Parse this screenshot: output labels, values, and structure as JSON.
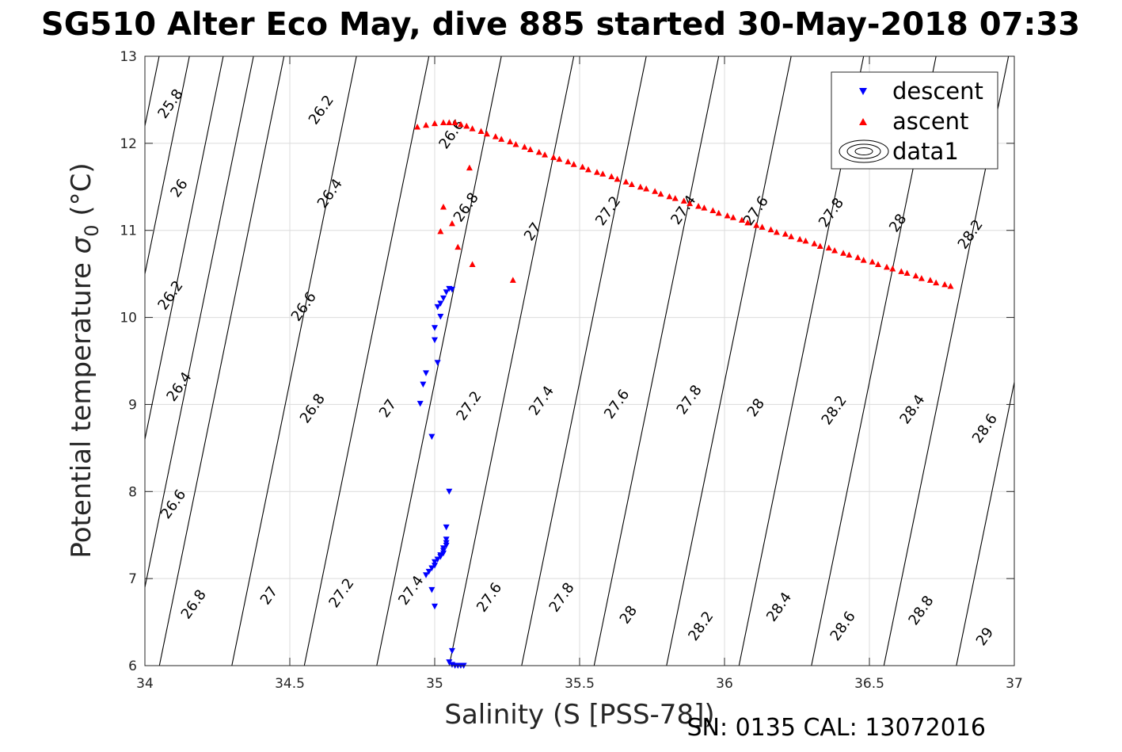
{
  "chart_data": {
    "type": "scatter",
    "title": "SG510 Alter Eco May, dive 885 started 30-May-2018 07:33",
    "xlabel": "Salinity (S [PSS-78])",
    "ylabel_main": "Potential temperature ",
    "ylabel_symbol": "σ",
    "ylabel_sub": "0",
    "ylabel_unit": " (°C)",
    "footer": "SN: 0135  CAL: 13072016",
    "xlim": [
      34,
      37
    ],
    "ylim": [
      6,
      13
    ],
    "xticks": [
      34,
      34.5,
      35,
      35.5,
      36,
      36.5,
      37
    ],
    "xtick_labels": [
      "34",
      "34.5",
      "35",
      "35.5",
      "36",
      "36.5",
      "37"
    ],
    "yticks": [
      6,
      7,
      8,
      9,
      10,
      11,
      12,
      13
    ],
    "ytick_labels": [
      "6",
      "7",
      "8",
      "9",
      "10",
      "11",
      "12",
      "13"
    ],
    "grid": true,
    "legend_position": "top-right",
    "series": [
      {
        "name": "descent",
        "marker": "triangle-down",
        "color": "#0000ff",
        "points": [
          [
            35.05,
            10.33
          ],
          [
            35.06,
            10.32
          ],
          [
            35.04,
            10.29
          ],
          [
            35.03,
            10.22
          ],
          [
            35.02,
            10.16
          ],
          [
            35.01,
            10.12
          ],
          [
            35.02,
            10.01
          ],
          [
            35.0,
            9.88
          ],
          [
            35.0,
            9.74
          ],
          [
            35.01,
            9.48
          ],
          [
            34.97,
            9.36
          ],
          [
            34.96,
            9.23
          ],
          [
            34.95,
            9.01
          ],
          [
            34.99,
            8.63
          ],
          [
            35.05,
            8.0
          ],
          [
            35.04,
            7.59
          ],
          [
            35.04,
            7.45
          ],
          [
            35.04,
            7.41
          ],
          [
            35.04,
            7.38
          ],
          [
            35.03,
            7.35
          ],
          [
            35.03,
            7.32
          ],
          [
            35.03,
            7.29
          ],
          [
            35.02,
            7.27
          ],
          [
            35.02,
            7.25
          ],
          [
            35.01,
            7.22
          ],
          [
            35.0,
            7.19
          ],
          [
            35.0,
            7.15
          ],
          [
            34.99,
            7.12
          ],
          [
            34.98,
            7.08
          ],
          [
            34.97,
            7.04
          ],
          [
            34.99,
            6.87
          ],
          [
            35.0,
            6.68
          ],
          [
            35.06,
            6.17
          ],
          [
            35.05,
            6.04
          ],
          [
            35.06,
            6.01
          ],
          [
            35.07,
            6.0
          ],
          [
            35.08,
            6.0
          ],
          [
            35.09,
            6.0
          ],
          [
            35.1,
            6.0
          ]
        ]
      },
      {
        "name": "ascent",
        "marker": "triangle-up",
        "color": "#ff0000",
        "points": [
          [
            34.94,
            12.19
          ],
          [
            34.97,
            12.21
          ],
          [
            35.0,
            12.23
          ],
          [
            35.03,
            12.24
          ],
          [
            35.05,
            12.24
          ],
          [
            35.07,
            12.24
          ],
          [
            35.09,
            12.22
          ],
          [
            35.11,
            12.2
          ],
          [
            35.13,
            12.17
          ],
          [
            35.16,
            12.14
          ],
          [
            35.18,
            12.11
          ],
          [
            35.21,
            12.08
          ],
          [
            35.23,
            12.05
          ],
          [
            35.26,
            12.02
          ],
          [
            35.28,
            11.99
          ],
          [
            35.31,
            11.96
          ],
          [
            35.33,
            11.93
          ],
          [
            35.36,
            11.9
          ],
          [
            35.38,
            11.87
          ],
          [
            35.41,
            11.84
          ],
          [
            35.43,
            11.82
          ],
          [
            35.46,
            11.79
          ],
          [
            35.48,
            11.76
          ],
          [
            35.51,
            11.73
          ],
          [
            35.53,
            11.7
          ],
          [
            35.56,
            11.67
          ],
          [
            35.58,
            11.65
          ],
          [
            35.61,
            11.62
          ],
          [
            35.63,
            11.59
          ],
          [
            35.66,
            11.56
          ],
          [
            35.68,
            11.53
          ],
          [
            35.71,
            11.5
          ],
          [
            35.73,
            11.48
          ],
          [
            35.76,
            11.45
          ],
          [
            35.78,
            11.42
          ],
          [
            35.81,
            11.39
          ],
          [
            35.83,
            11.37
          ],
          [
            35.86,
            11.34
          ],
          [
            35.88,
            11.31
          ],
          [
            35.91,
            11.28
          ],
          [
            35.93,
            11.26
          ],
          [
            35.96,
            11.23
          ],
          [
            35.98,
            11.2
          ],
          [
            36.01,
            11.17
          ],
          [
            36.03,
            11.15
          ],
          [
            36.06,
            11.12
          ],
          [
            36.08,
            11.09
          ],
          [
            36.11,
            11.06
          ],
          [
            36.13,
            11.04
          ],
          [
            36.16,
            11.01
          ],
          [
            36.18,
            10.98
          ],
          [
            36.21,
            10.96
          ],
          [
            36.23,
            10.93
          ],
          [
            36.26,
            10.9
          ],
          [
            36.28,
            10.88
          ],
          [
            36.31,
            10.85
          ],
          [
            36.33,
            10.82
          ],
          [
            36.36,
            10.8
          ],
          [
            36.38,
            10.77
          ],
          [
            36.41,
            10.74
          ],
          [
            36.43,
            10.72
          ],
          [
            36.46,
            10.69
          ],
          [
            36.48,
            10.66
          ],
          [
            36.51,
            10.64
          ],
          [
            36.53,
            10.61
          ],
          [
            36.56,
            10.58
          ],
          [
            36.58,
            10.56
          ],
          [
            36.61,
            10.53
          ],
          [
            36.63,
            10.51
          ],
          [
            36.66,
            10.48
          ],
          [
            36.68,
            10.45
          ],
          [
            36.71,
            10.43
          ],
          [
            36.73,
            10.4
          ],
          [
            36.76,
            10.38
          ],
          [
            36.78,
            10.36
          ],
          [
            35.12,
            11.72
          ],
          [
            35.03,
            11.27
          ],
          [
            35.02,
            10.99
          ],
          [
            35.06,
            11.08
          ],
          [
            35.08,
            10.81
          ],
          [
            35.13,
            10.61
          ],
          [
            35.27,
            10.43
          ]
        ]
      },
      {
        "name": "data1",
        "marker": "contour",
        "color": "#000000"
      }
    ],
    "contour_levels": [
      "25.8",
      "26",
      "26.2",
      "26.4",
      "26.6",
      "26.8",
      "27",
      "27.2",
      "27.4",
      "27.6",
      "27.8",
      "28",
      "28.2",
      "28.4",
      "28.6",
      "28.8",
      "29"
    ],
    "contour_labels": [
      {
        "text": "25.8",
        "x": 34.09,
        "y": 12.45
      },
      {
        "text": "26",
        "x": 34.12,
        "y": 11.48
      },
      {
        "text": "26.2",
        "x": 34.09,
        "y": 10.25
      },
      {
        "text": "26.4",
        "x": 34.12,
        "y": 9.2
      },
      {
        "text": "26.6",
        "x": 34.1,
        "y": 7.85
      },
      {
        "text": "26.8",
        "x": 34.17,
        "y": 6.7
      },
      {
        "text": "26.2",
        "x": 34.61,
        "y": 12.38
      },
      {
        "text": "26.4",
        "x": 34.64,
        "y": 11.42
      },
      {
        "text": "26.6",
        "x": 34.55,
        "y": 10.12
      },
      {
        "text": "26.8",
        "x": 34.58,
        "y": 8.95
      },
      {
        "text": "27",
        "x": 34.43,
        "y": 6.8
      },
      {
        "text": "27.2",
        "x": 34.68,
        "y": 6.83
      },
      {
        "text": "27",
        "x": 34.84,
        "y": 8.95
      },
      {
        "text": "27.4",
        "x": 34.92,
        "y": 6.86
      },
      {
        "text": "26.6",
        "x": 35.06,
        "y": 12.1
      },
      {
        "text": "26.8",
        "x": 35.11,
        "y": 11.26
      },
      {
        "text": "27.2",
        "x": 35.12,
        "y": 8.98
      },
      {
        "text": "27.6",
        "x": 35.19,
        "y": 6.78
      },
      {
        "text": "27",
        "x": 35.34,
        "y": 10.98
      },
      {
        "text": "27.4",
        "x": 35.37,
        "y": 9.04
      },
      {
        "text": "27.8",
        "x": 35.44,
        "y": 6.78
      },
      {
        "text": "27.2",
        "x": 35.6,
        "y": 11.22
      },
      {
        "text": "27.6",
        "x": 35.63,
        "y": 9.0
      },
      {
        "text": "28",
        "x": 35.67,
        "y": 6.58
      },
      {
        "text": "27.4",
        "x": 35.86,
        "y": 11.23
      },
      {
        "text": "27.8",
        "x": 35.88,
        "y": 9.05
      },
      {
        "text": "28.2",
        "x": 35.92,
        "y": 6.45
      },
      {
        "text": "27.6",
        "x": 36.11,
        "y": 11.22
      },
      {
        "text": "28",
        "x": 36.11,
        "y": 8.96
      },
      {
        "text": "28.4",
        "x": 36.19,
        "y": 6.67
      },
      {
        "text": "27.8",
        "x": 36.37,
        "y": 11.2
      },
      {
        "text": "28.2",
        "x": 36.38,
        "y": 8.93
      },
      {
        "text": "28.6",
        "x": 36.41,
        "y": 6.45
      },
      {
        "text": "28",
        "x": 36.6,
        "y": 11.08
      },
      {
        "text": "28.4",
        "x": 36.65,
        "y": 8.94
      },
      {
        "text": "28.8",
        "x": 36.68,
        "y": 6.63
      },
      {
        "text": "28.2",
        "x": 36.85,
        "y": 10.95
      },
      {
        "text": "28.6",
        "x": 36.9,
        "y": 8.72
      },
      {
        "text": "29",
        "x": 36.9,
        "y": 6.33
      }
    ]
  }
}
